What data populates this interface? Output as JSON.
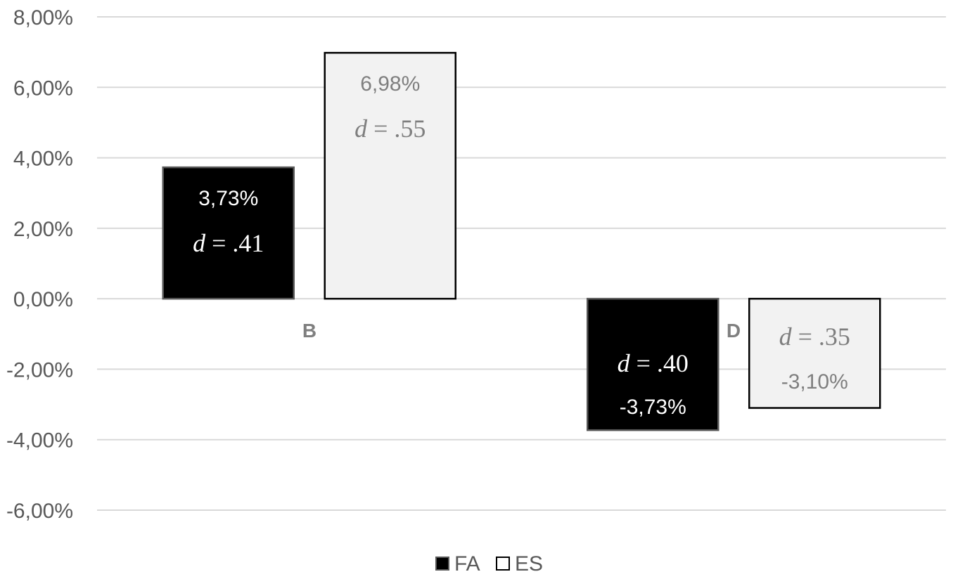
{
  "chart_data": {
    "type": "bar",
    "title": "",
    "xlabel": "",
    "ylabel": "",
    "categories": [
      "B",
      "D"
    ],
    "ylim": [
      -6,
      8
    ],
    "yticks": [
      8,
      6,
      4,
      2,
      0,
      -2,
      -4,
      -6
    ],
    "ytick_labels": [
      "8,00%",
      "6,00%",
      "4,00%",
      "2,00%",
      "0,00%",
      "-2,00%",
      "-4,00%",
      "-6,00%"
    ],
    "grid": true,
    "legend_position": "bottom",
    "series": [
      {
        "name": "FA",
        "color": "#000000",
        "text_color": "#ffffff",
        "values": [
          3.73,
          -3.73
        ],
        "value_labels": [
          "3,73%",
          "-3,73%"
        ],
        "d_labels": [
          "d = .41",
          "d = .40"
        ]
      },
      {
        "name": "ES",
        "color": "#f2f2f2",
        "text_color": "#7f7f7f",
        "values": [
          6.98,
          -3.1
        ],
        "value_labels": [
          "6,98%",
          "-3,10%"
        ],
        "d_labels": [
          "d = .55",
          "d = .35"
        ]
      }
    ]
  }
}
